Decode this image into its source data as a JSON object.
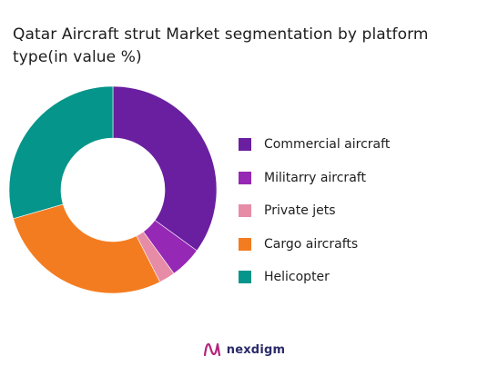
{
  "title": "Qatar Aircraft strut Market segmentation by platform type(in value %)",
  "brand": {
    "name": "nexdigm",
    "icon": "nexdigm-logo-icon",
    "icon_color": "#b3247d"
  },
  "chart_data": {
    "type": "pie",
    "donut": true,
    "legend_position": "right",
    "slices": [
      {
        "label": "Commercial aircraft",
        "value": 35,
        "color": "#6a1fa0"
      },
      {
        "label": "Militarry aircraft",
        "value": 5,
        "color": "#9528b4"
      },
      {
        "label": "Private jets",
        "value": 2.5,
        "color": "#e68ca6"
      },
      {
        "label": "Cargo aircrafts",
        "value": 28,
        "color": "#f47c20"
      },
      {
        "label": "Helicopter",
        "value": 29.5,
        "color": "#05958a"
      }
    ]
  }
}
